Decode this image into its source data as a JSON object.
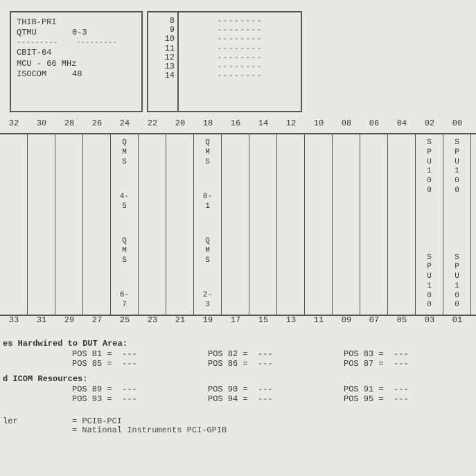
{
  "info_box": {
    "line1_label": "THIB-PRI",
    "line2_label": "QTMU",
    "line2_value": "0-3",
    "dash1": "---------",
    "dash1b": "---------",
    "line3_label": "CBIT-64",
    "line4_label": "MCU - 66 MHz",
    "line5_label": "ISOCOM",
    "line5_value": "48"
  },
  "row_numbers": [
    "8",
    "9",
    "10",
    "11",
    "12",
    "13",
    "14"
  ],
  "dash_lines": [
    "--------",
    "--------",
    "--------",
    "--------",
    "--------",
    "--------",
    "--------"
  ],
  "top_headers": [
    "32",
    "30",
    "28",
    "26",
    "24",
    "22",
    "20",
    "18",
    "16",
    "14",
    "12",
    "10",
    "08",
    "06",
    "04",
    "02",
    "00"
  ],
  "bottom_headers": [
    "33",
    "31",
    "29",
    "27",
    "25",
    "23",
    "21",
    "19",
    "17",
    "15",
    "13",
    "11",
    "09",
    "07",
    "05",
    "03",
    "01"
  ],
  "slots": {
    "24": {
      "top": [
        "Q",
        "M",
        "S"
      ],
      "mid": [
        "4-",
        "5"
      ],
      "low": [
        "Q",
        "M",
        "S"
      ],
      "bot": [
        "6-",
        "7"
      ]
    },
    "18": {
      "top": [
        "Q",
        "M",
        "S"
      ],
      "mid": [
        "0-",
        "1"
      ],
      "low": [
        "Q",
        "M",
        "S"
      ],
      "bot": [
        "2-",
        "3"
      ]
    },
    "02": {
      "top": [
        "S",
        "P",
        "U",
        "1",
        "0",
        "0"
      ],
      "low": [
        "S",
        "P",
        "U",
        "1",
        "0",
        "0"
      ]
    },
    "00": {
      "top": [
        "S",
        "P",
        "U",
        "1",
        "0",
        "0"
      ],
      "low": [
        "S",
        "P",
        "U",
        "1",
        "0",
        "0"
      ]
    }
  },
  "hardwired": {
    "heading": "es Hardwired to DUT Area:",
    "rows": [
      [
        {
          "pos": "POS 81",
          "val": "---"
        },
        {
          "pos": "POS 82",
          "val": "---"
        },
        {
          "pos": "POS 83",
          "val": "---"
        }
      ],
      [
        {
          "pos": "POS 85",
          "val": "---"
        },
        {
          "pos": "POS 86",
          "val": "---"
        },
        {
          "pos": "POS 87",
          "val": "---"
        }
      ]
    ]
  },
  "icom": {
    "heading": "d ICOM Resources:",
    "rows": [
      [
        {
          "pos": "POS 89",
          "val": "---"
        },
        {
          "pos": "POS 90",
          "val": "---"
        },
        {
          "pos": "POS 91",
          "val": "---"
        }
      ],
      [
        {
          "pos": "POS 93",
          "val": "---"
        },
        {
          "pos": "POS 94",
          "val": "---"
        },
        {
          "pos": "POS 95",
          "val": "---"
        }
      ]
    ]
  },
  "footer": {
    "label1": "ler",
    "eq1": "=  PCIB-PCI",
    "eq2": "=  National Instruments PCI-GPIB"
  },
  "colors": {
    "bg": "#e8e8e6",
    "border": "#555555",
    "text": "#333333"
  }
}
